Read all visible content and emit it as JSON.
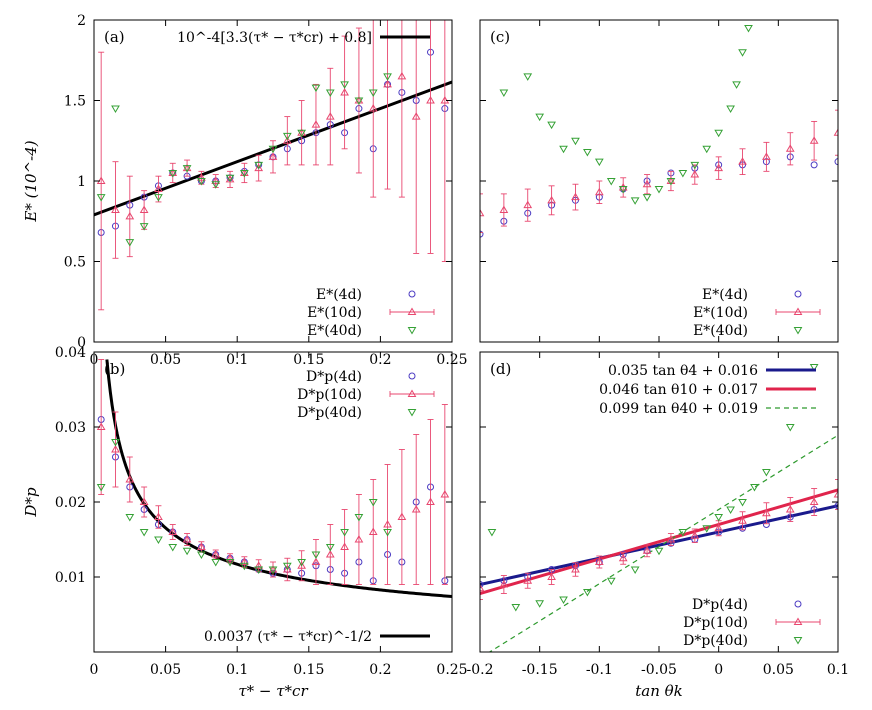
{
  "colors": {
    "s4": "#4b3bc2",
    "s10": "#e8476f",
    "s40": "#35a135",
    "fit": "#000000",
    "fit4": "#1a1a8c",
    "fit10": "#e0244c",
    "fit40": "#2e9a2e"
  },
  "chart_data": [
    {
      "panel": "(a)",
      "type": "scatter",
      "ylabel": "E* (10^-4)",
      "xlim": [
        0,
        0.25
      ],
      "ylim": [
        0,
        2
      ],
      "x_ticks": [
        "0",
        "0.05",
        "0.1",
        "0.15",
        "0.2",
        "0.25"
      ],
      "y_ticks": [
        "0",
        "0.5",
        "1",
        "1.5",
        "2"
      ],
      "fit_label": "10^-4[3.3(τ* − τ*cr) + 0.8]",
      "fit": {
        "slope": 3.3,
        "intercept": 0.79
      },
      "legend": [
        "E*(4d)",
        "E*(10d)",
        "E*(40d)"
      ],
      "series": [
        {
          "name": "E*(4d)",
          "marker": "circle",
          "x": [
            0.005,
            0.015,
            0.025,
            0.035,
            0.045,
            0.055,
            0.065,
            0.075,
            0.085,
            0.095,
            0.105,
            0.115,
            0.125,
            0.135,
            0.145,
            0.155,
            0.165,
            0.175,
            0.185,
            0.195,
            0.205,
            0.215,
            0.225,
            0.235,
            0.245
          ],
          "y": [
            0.68,
            0.72,
            0.85,
            0.9,
            0.97,
            1.05,
            1.03,
            1.0,
            1.0,
            1.02,
            1.06,
            1.1,
            1.15,
            1.2,
            1.25,
            1.3,
            1.35,
            1.3,
            1.45,
            1.2,
            1.6,
            1.55,
            1.5,
            1.8,
            1.45
          ]
        },
        {
          "name": "E*(10d)",
          "marker": "triangle",
          "x": [
            0.005,
            0.015,
            0.025,
            0.035,
            0.045,
            0.055,
            0.065,
            0.075,
            0.085,
            0.095,
            0.105,
            0.115,
            0.125,
            0.135,
            0.145,
            0.155,
            0.165,
            0.175,
            0.185,
            0.195,
            0.205,
            0.215,
            0.225,
            0.235,
            0.245
          ],
          "y": [
            1.0,
            0.82,
            0.78,
            0.82,
            0.95,
            1.05,
            1.08,
            1.02,
            1.0,
            1.01,
            1.05,
            1.08,
            1.15,
            1.25,
            1.3,
            1.35,
            1.4,
            1.55,
            1.5,
            1.45,
            1.6,
            1.65,
            1.4,
            1.5,
            1.5
          ],
          "err": [
            0.8,
            0.3,
            0.25,
            0.12,
            0.08,
            0.06,
            0.05,
            0.04,
            0.04,
            0.05,
            0.06,
            0.08,
            0.1,
            0.15,
            0.2,
            0.25,
            0.3,
            0.35,
            0.45,
            0.55,
            0.65,
            0.75,
            0.85,
            0.95,
            1.0
          ]
        },
        {
          "name": "E*(40d)",
          "marker": "triangle-down",
          "x": [
            0.005,
            0.015,
            0.025,
            0.035,
            0.045,
            0.055,
            0.065,
            0.075,
            0.085,
            0.095,
            0.105,
            0.115,
            0.125,
            0.135,
            0.145,
            0.155,
            0.165,
            0.175,
            0.185,
            0.195,
            0.205
          ],
          "y": [
            0.9,
            1.45,
            0.62,
            0.72,
            0.9,
            1.05,
            1.08,
            1.0,
            0.98,
            1.02,
            1.05,
            1.1,
            1.2,
            1.28,
            1.3,
            1.58,
            1.55,
            1.6,
            1.5,
            1.55,
            1.65
          ]
        }
      ]
    },
    {
      "panel": "(c)",
      "type": "scatter",
      "xlim": [
        -0.2,
        0.1
      ],
      "ylim": [
        0,
        2
      ],
      "legend": [
        "E*(4d)",
        "E*(10d)",
        "E*(40d)"
      ],
      "series": [
        {
          "name": "E*(4d)",
          "marker": "circle",
          "x": [
            -0.2,
            -0.18,
            -0.16,
            -0.14,
            -0.12,
            -0.1,
            -0.08,
            -0.06,
            -0.04,
            -0.02,
            0.0,
            0.02,
            0.04,
            0.06,
            0.08,
            0.1
          ],
          "y": [
            0.67,
            0.75,
            0.8,
            0.85,
            0.88,
            0.9,
            0.95,
            1.0,
            1.05,
            1.08,
            1.1,
            1.1,
            1.12,
            1.15,
            1.1,
            1.12
          ]
        },
        {
          "name": "E*(10d)",
          "marker": "triangle",
          "x": [
            -0.2,
            -0.18,
            -0.16,
            -0.14,
            -0.12,
            -0.1,
            -0.08,
            -0.06,
            -0.04,
            -0.02,
            0.0,
            0.02,
            0.04,
            0.06,
            0.08,
            0.1
          ],
          "y": [
            0.8,
            0.82,
            0.85,
            0.88,
            0.9,
            0.93,
            0.96,
            0.98,
            1.0,
            1.04,
            1.08,
            1.12,
            1.15,
            1.2,
            1.25,
            1.3
          ],
          "err": [
            0.12,
            0.1,
            0.1,
            0.09,
            0.08,
            0.07,
            0.06,
            0.06,
            0.06,
            0.06,
            0.07,
            0.08,
            0.09,
            0.1,
            0.12,
            0.14
          ]
        },
        {
          "name": "E*(40d)",
          "marker": "triangle-down",
          "x": [
            -0.18,
            -0.16,
            -0.15,
            -0.14,
            -0.13,
            -0.12,
            -0.11,
            -0.1,
            -0.09,
            -0.08,
            -0.07,
            -0.06,
            -0.05,
            -0.04,
            -0.03,
            -0.02,
            -0.01,
            0.0,
            0.01,
            0.015,
            0.02,
            0.025
          ],
          "y": [
            1.55,
            1.65,
            1.4,
            1.35,
            1.2,
            1.25,
            1.18,
            1.12,
            1.0,
            0.95,
            0.88,
            0.9,
            0.95,
            1.0,
            1.05,
            1.1,
            1.2,
            1.3,
            1.45,
            1.6,
            1.8,
            1.95
          ]
        }
      ]
    },
    {
      "panel": "(b)",
      "type": "scatter",
      "xlabel": "τ* − τ*cr",
      "ylabel": "D*p",
      "xlim": [
        0,
        0.25
      ],
      "ylim": [
        0,
        0.04
      ],
      "x_ticks": [
        "0",
        "0.05",
        "0.1",
        "0.15",
        "0.2",
        "0.25"
      ],
      "y_ticks": [
        "0.01",
        "0.02",
        "0.03",
        "0.04"
      ],
      "fit_label": "0.0037 (τ* − τ*cr)^-1/2",
      "fit": {
        "coef": 0.0037,
        "power": -0.5
      },
      "legend": [
        "D*p(4d)",
        "D*p(10d)",
        "D*p(40d)"
      ],
      "series": [
        {
          "name": "D*p(4d)",
          "marker": "circle",
          "x": [
            0.005,
            0.015,
            0.025,
            0.035,
            0.045,
            0.055,
            0.065,
            0.075,
            0.085,
            0.095,
            0.105,
            0.115,
            0.125,
            0.135,
            0.145,
            0.155,
            0.165,
            0.175,
            0.185,
            0.195,
            0.205,
            0.215,
            0.225,
            0.235,
            0.245
          ],
          "y": [
            0.031,
            0.026,
            0.022,
            0.019,
            0.017,
            0.016,
            0.015,
            0.014,
            0.013,
            0.0125,
            0.012,
            0.011,
            0.0105,
            0.011,
            0.0105,
            0.0115,
            0.011,
            0.0105,
            0.012,
            0.0095,
            0.013,
            0.012,
            0.02,
            0.022,
            0.0095
          ]
        },
        {
          "name": "D*p(10d)",
          "marker": "triangle",
          "x": [
            0.005,
            0.015,
            0.025,
            0.035,
            0.045,
            0.055,
            0.065,
            0.075,
            0.085,
            0.095,
            0.105,
            0.115,
            0.125,
            0.135,
            0.145,
            0.155,
            0.165,
            0.175,
            0.185,
            0.195,
            0.205,
            0.215,
            0.225,
            0.235,
            0.245
          ],
          "y": [
            0.03,
            0.027,
            0.023,
            0.02,
            0.018,
            0.016,
            0.015,
            0.014,
            0.013,
            0.0125,
            0.012,
            0.0115,
            0.011,
            0.011,
            0.0115,
            0.012,
            0.013,
            0.014,
            0.015,
            0.016,
            0.017,
            0.018,
            0.019,
            0.02,
            0.021
          ],
          "err": [
            0.009,
            0.005,
            0.003,
            0.002,
            0.0015,
            0.001,
            0.0008,
            0.0007,
            0.0006,
            0.0006,
            0.0007,
            0.0008,
            0.001,
            0.0015,
            0.002,
            0.003,
            0.004,
            0.005,
            0.006,
            0.007,
            0.008,
            0.009,
            0.01,
            0.011,
            0.012
          ]
        },
        {
          "name": "D*p(40d)",
          "marker": "triangle-down",
          "x": [
            0.005,
            0.015,
            0.025,
            0.035,
            0.045,
            0.055,
            0.065,
            0.075,
            0.085,
            0.095,
            0.105,
            0.115,
            0.125,
            0.135,
            0.145,
            0.155,
            0.165,
            0.175,
            0.185,
            0.195,
            0.205
          ],
          "y": [
            0.022,
            0.028,
            0.018,
            0.016,
            0.015,
            0.014,
            0.0135,
            0.013,
            0.012,
            0.012,
            0.0115,
            0.011,
            0.011,
            0.0115,
            0.012,
            0.013,
            0.014,
            0.016,
            0.018,
            0.02,
            0.016
          ]
        }
      ]
    },
    {
      "panel": "(d)",
      "type": "scatter",
      "xlabel": "tan θk",
      "xlim": [
        -0.2,
        0.1
      ],
      "ylim": [
        0,
        0.04
      ],
      "x_ticks": [
        "-0.2",
        "-0.15",
        "-0.1",
        "-0.05",
        "0",
        "0.05",
        "0.1"
      ],
      "fits": [
        {
          "label": "0.035 tan θ4 + 0.016",
          "slope": 0.035,
          "intercept": 0.016,
          "style": "solid",
          "color": "fit4"
        },
        {
          "label": "0.046 tan θ10 + 0.017",
          "slope": 0.046,
          "intercept": 0.017,
          "style": "solid",
          "color": "fit10"
        },
        {
          "label": "0.099 tan θ40 + 0.019",
          "slope": 0.099,
          "intercept": 0.019,
          "style": "dashed",
          "color": "fit40"
        }
      ],
      "legend": [
        "D*p(4d)",
        "D*p(10d)",
        "D*p(40d)"
      ],
      "series": [
        {
          "name": "D*p(4d)",
          "marker": "circle",
          "x": [
            -0.2,
            -0.18,
            -0.16,
            -0.14,
            -0.12,
            -0.1,
            -0.08,
            -0.06,
            -0.04,
            -0.02,
            0.0,
            0.02,
            0.04,
            0.06,
            0.08,
            0.1
          ],
          "y": [
            0.009,
            0.0095,
            0.01,
            0.011,
            0.0115,
            0.012,
            0.013,
            0.0135,
            0.0145,
            0.015,
            0.016,
            0.0165,
            0.017,
            0.018,
            0.019,
            0.0195
          ]
        },
        {
          "name": "D*p(10d)",
          "marker": "triangle",
          "x": [
            -0.2,
            -0.18,
            -0.16,
            -0.14,
            -0.12,
            -0.1,
            -0.08,
            -0.06,
            -0.04,
            -0.02,
            0.0,
            0.02,
            0.04,
            0.06,
            0.08,
            0.1
          ],
          "y": [
            0.0085,
            0.009,
            0.0095,
            0.01,
            0.011,
            0.012,
            0.0125,
            0.0135,
            0.015,
            0.0155,
            0.0165,
            0.0175,
            0.0185,
            0.019,
            0.02,
            0.021
          ],
          "err": [
            0.0015,
            0.0012,
            0.001,
            0.001,
            0.0009,
            0.0008,
            0.0008,
            0.0008,
            0.0008,
            0.0009,
            0.001,
            0.0012,
            0.0014,
            0.0016,
            0.0018,
            0.002
          ]
        },
        {
          "name": "D*p(40d)",
          "marker": "triangle-down",
          "x": [
            -0.19,
            -0.17,
            -0.15,
            -0.13,
            -0.11,
            -0.09,
            -0.07,
            -0.05,
            -0.03,
            -0.01,
            0.0,
            0.01,
            0.02,
            0.03,
            0.04,
            0.06,
            0.08
          ],
          "y": [
            0.016,
            0.006,
            0.0065,
            0.007,
            0.008,
            0.0095,
            0.011,
            0.0135,
            0.016,
            0.0165,
            0.018,
            0.019,
            0.02,
            0.022,
            0.024,
            0.03,
            0.038
          ]
        }
      ]
    }
  ]
}
